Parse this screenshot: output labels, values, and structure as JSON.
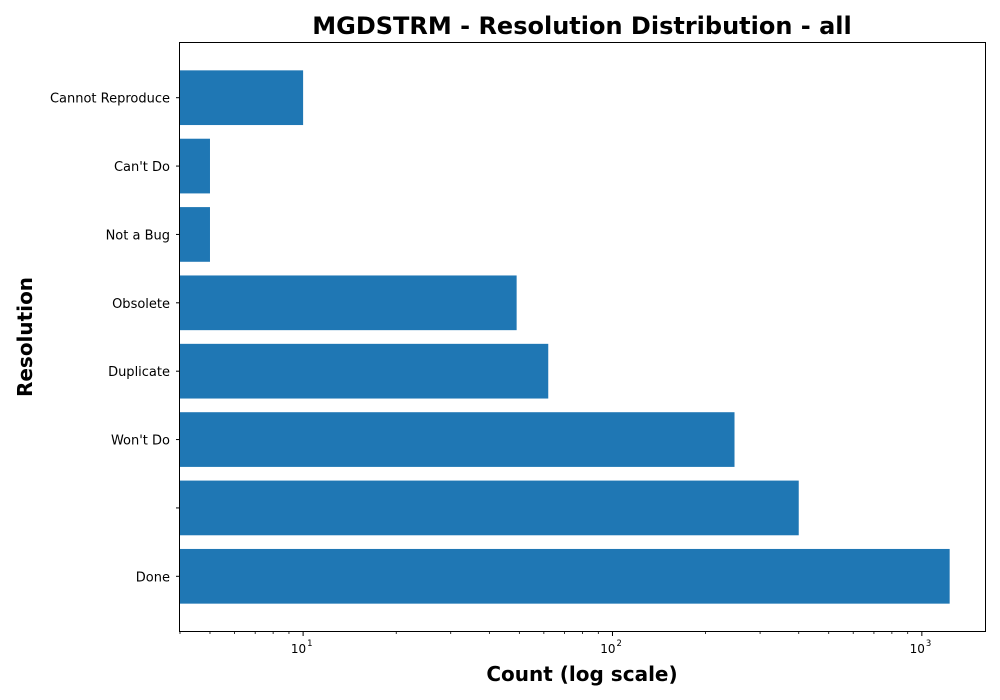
{
  "chart_data": {
    "type": "bar",
    "orientation": "horizontal",
    "title": "MGDSTRM - Resolution Distribution - all",
    "xlabel": "Count (log scale)",
    "ylabel": "Resolution",
    "x_scale": "log",
    "xlim": [
      4,
      1600
    ],
    "categories": [
      "Done",
      "",
      "Won't Do",
      "Duplicate",
      "Obsolete",
      "Not a Bug",
      "Can't Do",
      "Cannot Reproduce"
    ],
    "values": [
      1230,
      400,
      248,
      62,
      49,
      5,
      5,
      10
    ],
    "bar_color": "#1f77b4",
    "x_ticks": [
      {
        "base": "10",
        "exp": "1",
        "value": 10
      },
      {
        "base": "10",
        "exp": "2",
        "value": 100
      },
      {
        "base": "10",
        "exp": "3",
        "value": 1000
      }
    ],
    "grid": false,
    "legend": "none"
  }
}
